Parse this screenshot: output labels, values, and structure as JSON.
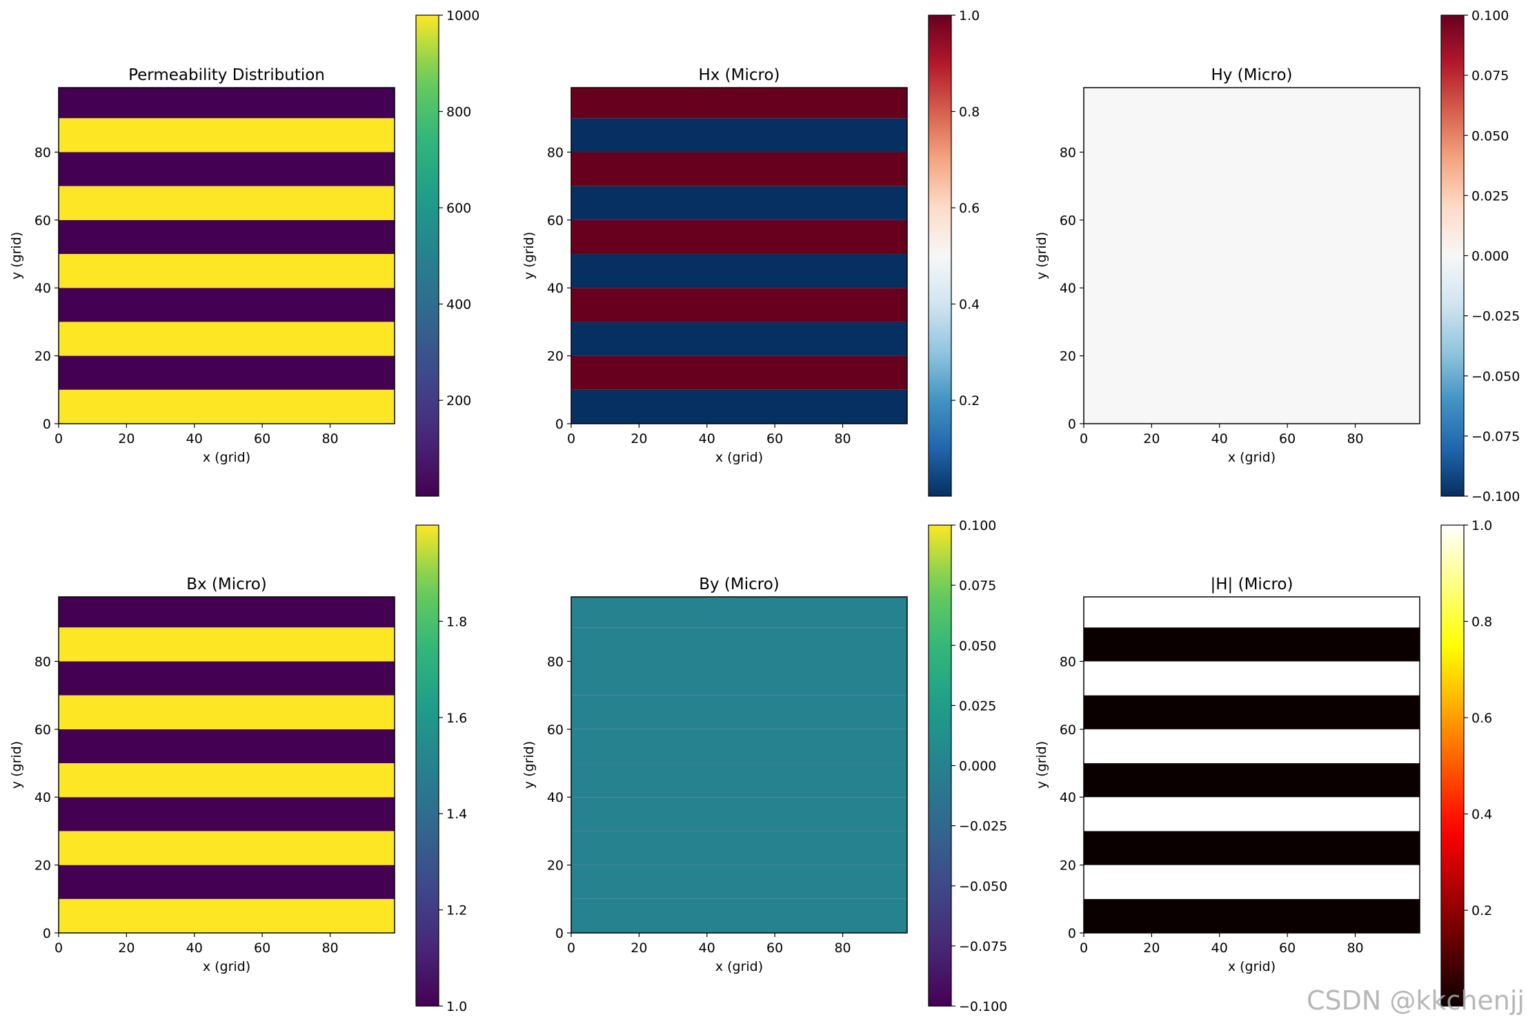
{
  "watermark": "CSDN @kkchenjj",
  "chart_data": [
    {
      "type": "heatmap",
      "title": "Permeability Distribution",
      "xlabel": "x (grid)",
      "ylabel": "y (grid)",
      "xlim": [
        0,
        99
      ],
      "ylim": [
        0,
        99
      ],
      "xticks": [
        "0",
        "20",
        "40",
        "60",
        "80"
      ],
      "yticks": [
        "0",
        "20",
        "40",
        "60",
        "80"
      ],
      "bands": {
        "axis": "y",
        "width": 10,
        "values": [
          1000,
          1,
          1000,
          1,
          1000,
          1,
          1000,
          1,
          1000,
          1
        ]
      },
      "colormap": "viridis",
      "clim": [
        1,
        1000
      ],
      "colorbar_ticks": [
        {
          "v": 200,
          "t": "200"
        },
        {
          "v": 400,
          "t": "400"
        },
        {
          "v": 600,
          "t": "600"
        },
        {
          "v": 800,
          "t": "800"
        },
        {
          "v": 1000,
          "t": "1000"
        }
      ]
    },
    {
      "type": "heatmap",
      "title": "Hx (Micro)",
      "xlabel": "x (grid)",
      "ylabel": "y (grid)",
      "xlim": [
        0,
        99
      ],
      "ylim": [
        0,
        99
      ],
      "xticks": [
        "0",
        "20",
        "40",
        "60",
        "80"
      ],
      "yticks": [
        "0",
        "20",
        "40",
        "60",
        "80"
      ],
      "bands": {
        "axis": "y",
        "width": 10,
        "values": [
          0.001,
          1,
          0.001,
          1,
          0.001,
          1,
          0.001,
          1,
          0.001,
          1
        ]
      },
      "colormap": "RdBu_r",
      "clim": [
        0.001,
        1.0
      ],
      "colorbar_ticks": [
        {
          "v": 0.2,
          "t": "0.2"
        },
        {
          "v": 0.4,
          "t": "0.4"
        },
        {
          "v": 0.6,
          "t": "0.6"
        },
        {
          "v": 0.8,
          "t": "0.8"
        },
        {
          "v": 1.0,
          "t": "1.0"
        }
      ]
    },
    {
      "type": "heatmap",
      "title": "Hy (Micro)",
      "xlabel": "x (grid)",
      "ylabel": "y (grid)",
      "xlim": [
        0,
        99
      ],
      "ylim": [
        0,
        99
      ],
      "xticks": [
        "0",
        "20",
        "40",
        "60",
        "80"
      ],
      "yticks": [
        "0",
        "20",
        "40",
        "60",
        "80"
      ],
      "bands": {
        "axis": "y",
        "width": 10,
        "values": [
          0,
          0,
          0,
          0,
          0,
          0,
          0,
          0,
          0,
          0
        ]
      },
      "colormap": "RdBu_r",
      "clim": [
        -0.1,
        0.1
      ],
      "colorbar_ticks": [
        {
          "v": -0.1,
          "t": "−0.100"
        },
        {
          "v": -0.075,
          "t": "−0.075"
        },
        {
          "v": -0.05,
          "t": "−0.050"
        },
        {
          "v": -0.025,
          "t": "−0.025"
        },
        {
          "v": 0,
          "t": "0.000"
        },
        {
          "v": 0.025,
          "t": "0.025"
        },
        {
          "v": 0.05,
          "t": "0.050"
        },
        {
          "v": 0.075,
          "t": "0.075"
        },
        {
          "v": 0.1,
          "t": "0.100"
        }
      ]
    },
    {
      "type": "heatmap",
      "title": "Bx (Micro)",
      "xlabel": "x (grid)",
      "ylabel": "y (grid)",
      "xlim": [
        0,
        99
      ],
      "ylim": [
        0,
        99
      ],
      "xticks": [
        "0",
        "20",
        "40",
        "60",
        "80"
      ],
      "yticks": [
        "0",
        "20",
        "40",
        "60",
        "80"
      ],
      "bands": {
        "axis": "y",
        "width": 10,
        "values": [
          2,
          1,
          2,
          1,
          2,
          1,
          2,
          1,
          2,
          1
        ]
      },
      "colormap": "viridis",
      "clim": [
        1,
        2
      ],
      "colorbar_ticks": [
        {
          "v": 1.0,
          "t": "1.0"
        },
        {
          "v": 1.2,
          "t": "1.2"
        },
        {
          "v": 1.4,
          "t": "1.4"
        },
        {
          "v": 1.6,
          "t": "1.6"
        },
        {
          "v": 1.8,
          "t": "1.8"
        }
      ]
    },
    {
      "type": "heatmap",
      "title": "By (Micro)",
      "xlabel": "x (grid)",
      "ylabel": "y (grid)",
      "xlim": [
        0,
        99
      ],
      "ylim": [
        0,
        99
      ],
      "xticks": [
        "0",
        "20",
        "40",
        "60",
        "80"
      ],
      "yticks": [
        "0",
        "20",
        "40",
        "60",
        "80"
      ],
      "bands": {
        "axis": "y",
        "width": 10,
        "values": [
          0,
          0,
          0,
          0,
          0,
          0,
          0,
          0,
          0,
          0
        ]
      },
      "colormap": "viridis",
      "clim": [
        -0.1,
        0.1
      ],
      "colorbar_ticks": [
        {
          "v": -0.1,
          "t": "−0.100"
        },
        {
          "v": -0.075,
          "t": "−0.075"
        },
        {
          "v": -0.05,
          "t": "−0.050"
        },
        {
          "v": -0.025,
          "t": "−0.025"
        },
        {
          "v": 0,
          "t": "0.000"
        },
        {
          "v": 0.025,
          "t": "0.025"
        },
        {
          "v": 0.05,
          "t": "0.050"
        },
        {
          "v": 0.075,
          "t": "0.075"
        },
        {
          "v": 0.1,
          "t": "0.100"
        }
      ]
    },
    {
      "type": "heatmap",
      "title": "|H| (Micro)",
      "xlabel": "x (grid)",
      "ylabel": "y (grid)",
      "xlim": [
        0,
        99
      ],
      "ylim": [
        0,
        99
      ],
      "xticks": [
        "0",
        "20",
        "40",
        "60",
        "80"
      ],
      "yticks": [
        "0",
        "20",
        "40",
        "60",
        "80"
      ],
      "bands": {
        "axis": "y",
        "width": 10,
        "values": [
          0.001,
          1,
          0.001,
          1,
          0.001,
          1,
          0.001,
          1,
          0.001,
          1
        ]
      },
      "colormap": "hot",
      "clim": [
        0.001,
        1.0
      ],
      "colorbar_ticks": [
        {
          "v": 0.2,
          "t": "0.2"
        },
        {
          "v": 0.4,
          "t": "0.4"
        },
        {
          "v": 0.6,
          "t": "0.6"
        },
        {
          "v": 0.8,
          "t": "0.8"
        },
        {
          "v": 1.0,
          "t": "1.0"
        }
      ]
    }
  ]
}
